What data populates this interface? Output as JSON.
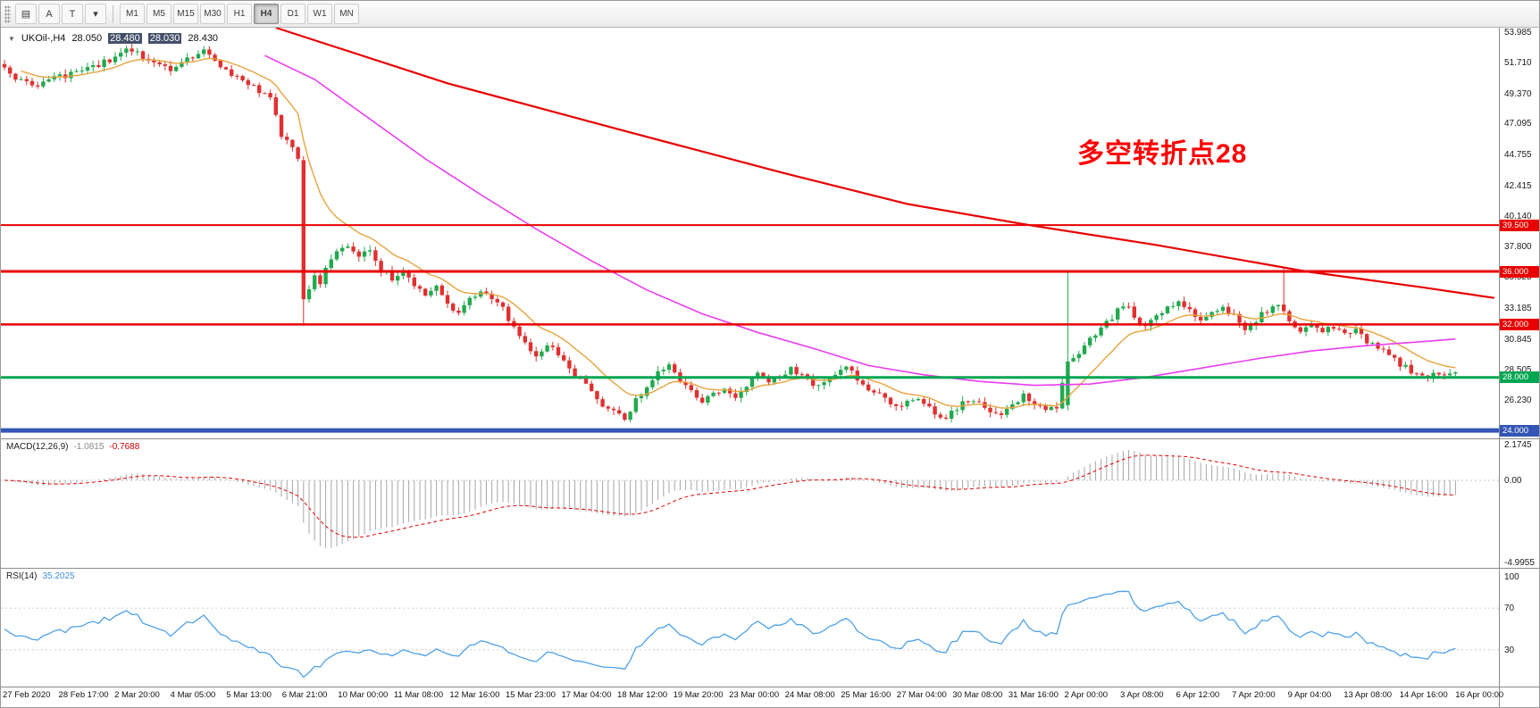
{
  "toolbar": {
    "tools": [
      {
        "name": "chart-window-icon",
        "glyph": "▤"
      },
      {
        "name": "annotate-a-icon",
        "glyph": "A"
      },
      {
        "name": "text-tool-icon",
        "glyph": "T"
      },
      {
        "name": "dropdown-arrow-icon",
        "glyph": "▾"
      }
    ],
    "timeframes": [
      "M1",
      "M5",
      "M15",
      "M30",
      "H1",
      "H4",
      "D1",
      "W1",
      "MN"
    ],
    "active_timeframe": "H4"
  },
  "chart": {
    "collapse_glyph": "▼",
    "title_parts": [
      {
        "text": "UKOil-,H4",
        "hl": false
      },
      {
        "text": "28.050",
        "hl": false
      },
      {
        "text": "28.480",
        "hl": true
      },
      {
        "text": "28.030",
        "hl": true
      },
      {
        "text": "28.430",
        "hl": false
      }
    ],
    "annotation": {
      "text": "多空转折点28",
      "color": "#fe0000"
    }
  },
  "indicators": {
    "macd": {
      "label": "MACD(12,26,9)",
      "value_main": "-1.0815",
      "value_signal": "-0.7688",
      "axis": [
        "2.1745",
        "0.00",
        "-4.9955"
      ],
      "range": [
        -4.9955,
        2.1745
      ],
      "bar_color": "#a6a6a6",
      "signal_color": "#e00000"
    },
    "rsi": {
      "label": "RSI(14)",
      "value": "35.2025",
      "axis": [
        "100",
        "70",
        "30"
      ],
      "levels": [
        70,
        30
      ],
      "color": "#4da1e8"
    }
  },
  "chart_data": {
    "type": "candlestick",
    "symbol": "UKOil-",
    "period": "H4",
    "title": "UKOil-,H4  28.050 28.480 28.030 28.430",
    "ohlc_current": {
      "open": 28.05,
      "high": 28.48,
      "low": 28.03,
      "close": 28.43
    },
    "price_range": [
      23.4,
      54.4
    ],
    "price_axis_labels": [
      "53.985",
      "51.710",
      "49.370",
      "47.095",
      "44.755",
      "42.415",
      "40.140",
      "37.800",
      "35.525",
      "33.185",
      "30.845",
      "28.505",
      "26.230"
    ],
    "time_labels": [
      "27 Feb 2020",
      "28 Feb 17:00",
      "2 Mar 20:00",
      "4 Mar 05:00",
      "5 Mar 13:00",
      "6 Mar 21:00",
      "10 Mar 00:00",
      "11 Mar 08:00",
      "12 Mar 16:00",
      "15 Mar 23:00",
      "17 Mar 04:00",
      "18 Mar 12:00",
      "19 Mar 20:00",
      "23 Mar 00:00",
      "24 Mar 08:00",
      "25 Mar 16:00",
      "27 Mar 04:00",
      "30 Mar 08:00",
      "31 Mar 16:00",
      "2 Apr 00:00",
      "3 Apr 08:00",
      "6 Apr 12:00",
      "7 Apr 20:00",
      "9 Apr 04:00",
      "13 Apr 08:00",
      "14 Apr 16:00",
      "16 Apr 00:00"
    ],
    "candles_n": 263,
    "seed": 20200416,
    "colors": {
      "up": "#22a94e",
      "down": "#e03030"
    },
    "close_waypoints": [
      [
        0,
        51.4
      ],
      [
        3,
        50.3
      ],
      [
        6,
        50.0
      ],
      [
        10,
        50.7
      ],
      [
        14,
        51.2
      ],
      [
        18,
        51.8
      ],
      [
        22,
        52.7
      ],
      [
        26,
        52.1
      ],
      [
        30,
        51.3
      ],
      [
        33,
        52.2
      ],
      [
        36,
        52.6
      ],
      [
        40,
        51.1
      ],
      [
        44,
        50.3
      ],
      [
        48,
        48.9
      ],
      [
        50,
        46.4
      ],
      [
        53,
        44.6
      ],
      [
        54,
        33.9
      ],
      [
        55,
        34.6
      ],
      [
        56,
        35.6
      ],
      [
        57,
        34.9
      ],
      [
        58,
        36.1
      ],
      [
        60,
        37.4
      ],
      [
        62,
        38.0
      ],
      [
        64,
        37.0
      ],
      [
        66,
        37.7
      ],
      [
        68,
        36.2
      ],
      [
        70,
        35.4
      ],
      [
        72,
        36.2
      ],
      [
        74,
        35.0
      ],
      [
        76,
        34.2
      ],
      [
        78,
        34.8
      ],
      [
        80,
        33.6
      ],
      [
        82,
        32.8
      ],
      [
        84,
        33.8
      ],
      [
        86,
        34.6
      ],
      [
        88,
        33.8
      ],
      [
        90,
        33.2
      ],
      [
        92,
        31.8
      ],
      [
        94,
        30.6
      ],
      [
        96,
        29.8
      ],
      [
        98,
        30.6
      ],
      [
        100,
        29.6
      ],
      [
        102,
        28.6
      ],
      [
        104,
        28.0
      ],
      [
        106,
        27.0
      ],
      [
        108,
        26.0
      ],
      [
        110,
        25.4
      ],
      [
        112,
        25.0
      ],
      [
        114,
        26.2
      ],
      [
        116,
        27.4
      ],
      [
        118,
        28.4
      ],
      [
        120,
        28.8
      ],
      [
        122,
        27.6
      ],
      [
        124,
        26.8
      ],
      [
        126,
        26.2
      ],
      [
        128,
        26.8
      ],
      [
        130,
        27.2
      ],
      [
        132,
        26.4
      ],
      [
        134,
        27.4
      ],
      [
        136,
        28.2
      ],
      [
        138,
        27.8
      ],
      [
        140,
        28.2
      ],
      [
        142,
        28.6
      ],
      [
        144,
        28.0
      ],
      [
        146,
        27.4
      ],
      [
        148,
        27.8
      ],
      [
        150,
        28.3
      ],
      [
        152,
        28.6
      ],
      [
        154,
        28.0
      ],
      [
        156,
        27.2
      ],
      [
        158,
        26.6
      ],
      [
        160,
        26.2
      ],
      [
        162,
        25.8
      ],
      [
        164,
        26.4
      ],
      [
        166,
        26.0
      ],
      [
        168,
        25.4
      ],
      [
        170,
        25.0
      ],
      [
        172,
        25.6
      ],
      [
        174,
        26.4
      ],
      [
        176,
        26.0
      ],
      [
        178,
        25.2
      ],
      [
        180,
        25.0
      ],
      [
        182,
        25.8
      ],
      [
        184,
        26.6
      ],
      [
        186,
        26.0
      ],
      [
        188,
        25.4
      ],
      [
        190,
        25.8
      ],
      [
        192,
        29.2
      ],
      [
        194,
        30.0
      ],
      [
        196,
        31.0
      ],
      [
        198,
        31.8
      ],
      [
        200,
        32.4
      ],
      [
        202,
        33.6
      ],
      [
        204,
        32.6
      ],
      [
        206,
        31.8
      ],
      [
        208,
        32.6
      ],
      [
        210,
        33.2
      ],
      [
        212,
        33.8
      ],
      [
        214,
        33.0
      ],
      [
        216,
        32.2
      ],
      [
        218,
        32.8
      ],
      [
        220,
        33.4
      ],
      [
        222,
        32.6
      ],
      [
        224,
        31.8
      ],
      [
        226,
        32.4
      ],
      [
        228,
        33.0
      ],
      [
        230,
        33.4
      ],
      [
        231,
        33.0
      ],
      [
        232,
        32.2
      ],
      [
        234,
        31.6
      ],
      [
        236,
        32.0
      ],
      [
        238,
        31.6
      ],
      [
        240,
        31.8
      ],
      [
        242,
        31.2
      ],
      [
        244,
        31.6
      ],
      [
        246,
        30.8
      ],
      [
        248,
        30.2
      ],
      [
        250,
        29.6
      ],
      [
        252,
        29.0
      ],
      [
        254,
        28.4
      ],
      [
        256,
        27.9
      ],
      [
        258,
        28.2
      ],
      [
        260,
        28.1
      ],
      [
        262,
        28.43
      ]
    ],
    "special_candles": [
      {
        "i": 54,
        "o": 44.4,
        "h": 44.7,
        "l": 31.9,
        "c": 33.9
      },
      {
        "i": 192,
        "o": 25.9,
        "h": 36.0,
        "l": 25.5,
        "c": 29.2
      },
      {
        "i": 231,
        "o": 33.5,
        "h": 36.3,
        "l": 32.7,
        "c": 33.0
      }
    ],
    "overlays": {
      "ma_fast": {
        "type": "ema",
        "period": 13,
        "color": "#e8a33d"
      },
      "ma_slow_color": "#e93cf0",
      "ma_slow_waypoints": [
        [
          47,
          52.3
        ],
        [
          56,
          50.5
        ],
        [
          66,
          47.5
        ],
        [
          76,
          44.5
        ],
        [
          86,
          41.8
        ],
        [
          96,
          39.2
        ],
        [
          106,
          36.8
        ],
        [
          116,
          34.6
        ],
        [
          126,
          32.8
        ],
        [
          136,
          31.4
        ],
        [
          146,
          30.2
        ],
        [
          156,
          28.9
        ],
        [
          166,
          28.2
        ],
        [
          176,
          27.7
        ],
        [
          186,
          27.4
        ],
        [
          196,
          27.5
        ],
        [
          206,
          28.0
        ],
        [
          216,
          28.7
        ],
        [
          226,
          29.4
        ],
        [
          236,
          30.0
        ],
        [
          246,
          30.4
        ],
        [
          256,
          30.7
        ],
        [
          262,
          30.9
        ]
      ],
      "trendline_color": "#e80000",
      "trendline_waypoints": [
        [
          49,
          54.4
        ],
        [
          80,
          50.2
        ],
        [
          112,
          46.6
        ],
        [
          140,
          43.5
        ],
        [
          163,
          41.1
        ],
        [
          185,
          39.5
        ],
        [
          208,
          38.0
        ],
        [
          235,
          36.0
        ],
        [
          256,
          34.8
        ],
        [
          269,
          34.0
        ]
      ]
    },
    "hlines": [
      {
        "price": 39.5,
        "label": "39.500",
        "color": "#e80000",
        "w": 2
      },
      {
        "price": 36.0,
        "label": "36.000",
        "color": "#e80000",
        "w": 3
      },
      {
        "price": 32.0,
        "label": "32.000",
        "color": "#e80000",
        "w": 2.5
      },
      {
        "price": 28.0,
        "label": "28.000",
        "color": "#00a651",
        "w": 3
      },
      {
        "price": 24.0,
        "label": "24.000",
        "color": "#3355b4",
        "w": 5
      }
    ]
  }
}
